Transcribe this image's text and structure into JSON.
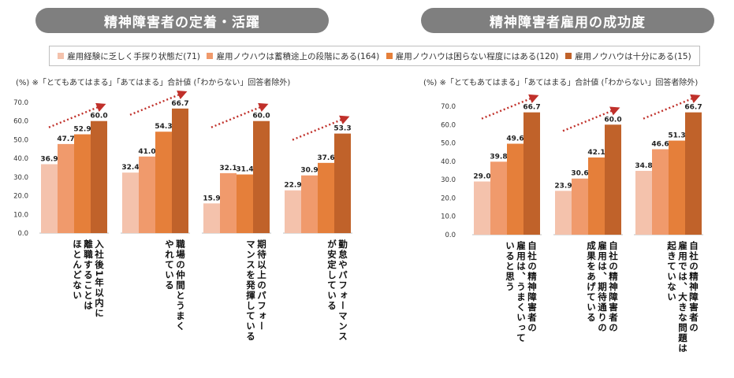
{
  "titles": {
    "left": "精神障害者の定着・活躍",
    "right": "精神障害者雇用の成功度"
  },
  "legend": [
    {
      "label": "雇用経験に乏しく手探り状態だ(71)",
      "color": "#f4c2ac"
    },
    {
      "label": "雇用ノウハウは蓄積途上の段階にある(164)",
      "color": "#f09a6c"
    },
    {
      "label": "雇用ノウハウは困らない程度にはある(120)",
      "color": "#e57f3a"
    },
    {
      "label": "雇用ノウハウは十分にある(15)",
      "color": "#c0622a"
    }
  ],
  "notes": {
    "left": "(%) ※「とてもあてはまる」「あてはまる」合計値 (「わからない」回答者除外)",
    "right": "(%) ※「とてもあてはまる」「あてはまる」合計値 (「わからない」回答者除外)"
  },
  "chart_data": [
    {
      "type": "bar",
      "title": "精神障害者の定着・活躍",
      "ylabel": "(%)",
      "ylim": [
        0,
        70
      ],
      "yticks": [
        "0.0",
        "10.0",
        "20.0",
        "30.0",
        "40.0",
        "50.0",
        "60.0",
        "70.0"
      ],
      "series_names": [
        "雇用経験に乏しく手探り状態だ(71)",
        "雇用ノウハウは蓄積途上の段階にある(164)",
        "雇用ノウハウは困らない程度にはある(120)",
        "雇用ノウハウは十分にある(15)"
      ],
      "groups": [
        {
          "category_lines": [
            "入社後1年以内に",
            "離職することは",
            "ほとんどない"
          ],
          "values": [
            36.9,
            47.7,
            52.9,
            60.0
          ]
        },
        {
          "category_lines": [
            "職場の仲間とうまく",
            "やれている"
          ],
          "values": [
            32.4,
            41.0,
            54.3,
            66.7
          ]
        },
        {
          "category_lines": [
            "期待以上のパフォー",
            "マンスを発揮している"
          ],
          "values": [
            15.9,
            32.1,
            31.4,
            60.0
          ]
        },
        {
          "category_lines": [
            "勤怠やパフォーマンス",
            "が安定している"
          ],
          "values": [
            22.9,
            30.9,
            37.6,
            53.3
          ]
        }
      ]
    },
    {
      "type": "bar",
      "title": "精神障害者雇用の成功度",
      "ylabel": "(%)",
      "ylim": [
        0,
        70
      ],
      "yticks": [
        "0.0",
        "10.0",
        "20.0",
        "30.0",
        "40.0",
        "50.0",
        "60.0",
        "70.0"
      ],
      "series_names": [
        "雇用経験に乏しく手探り状態だ(71)",
        "雇用ノウハウは蓄積途上の段階にある(164)",
        "雇用ノウハウは困らない程度にはある(120)",
        "雇用ノウハウは十分にある(15)"
      ],
      "groups": [
        {
          "category_lines": [
            "自社の精神障害者の",
            "雇用は、うまくいって",
            "いると思う"
          ],
          "values": [
            29.0,
            39.8,
            49.6,
            66.7
          ]
        },
        {
          "category_lines": [
            "自社の精神障害者の",
            "雇用は、期待通りの",
            "成果をあげている"
          ],
          "values": [
            23.9,
            30.6,
            42.1,
            60.0
          ]
        },
        {
          "category_lines": [
            "自社の精神障害者の",
            "雇用では、大きな問題は",
            "起きていない"
          ],
          "values": [
            34.8,
            46.6,
            51.3,
            66.7
          ]
        }
      ]
    }
  ]
}
